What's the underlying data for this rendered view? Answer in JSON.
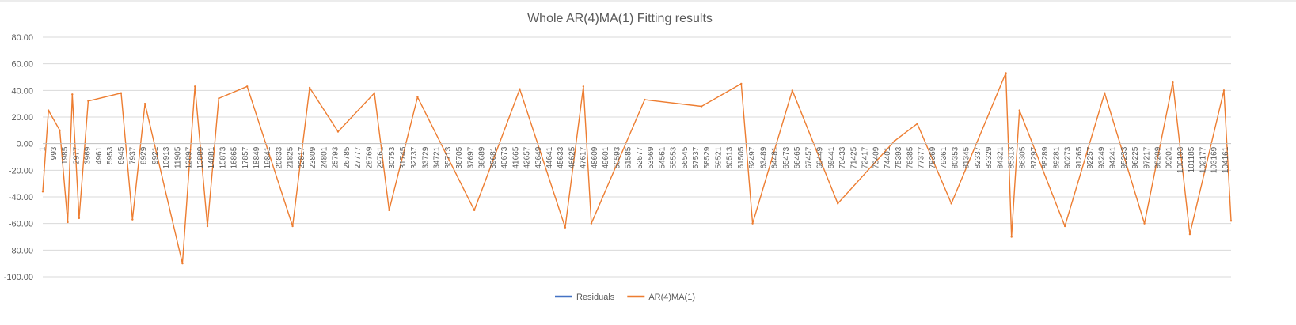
{
  "chart_data": {
    "type": "line",
    "title": "Whole AR(4)MA(1) Fitting results",
    "xlabel": "",
    "ylabel": "",
    "ylim": [
      -100,
      80
    ],
    "y_ticks": [
      80,
      60,
      40,
      20,
      0,
      -20,
      -40,
      -60,
      -80,
      -100
    ],
    "y_tick_labels": [
      "80.00",
      "60.00",
      "40.00",
      "20.00",
      "0.00",
      "-20.00",
      "-40.00",
      "-60.00",
      "-80.00",
      "-100.00"
    ],
    "x_range": [
      1,
      104629
    ],
    "x_tick_labels": [
      "1",
      "993",
      "1985",
      "2977",
      "3969",
      "4961",
      "5953",
      "6945",
      "7937",
      "8929",
      "9921",
      "10913",
      "11905",
      "12897",
      "13889",
      "14881",
      "15873",
      "16865",
      "17857",
      "18849",
      "19841",
      "20833",
      "21825",
      "22817",
      "23809",
      "24801",
      "25793",
      "26785",
      "27777",
      "28769",
      "29761",
      "30753",
      "31745",
      "32737",
      "33729",
      "34721",
      "35713",
      "36705",
      "37697",
      "38689",
      "39681",
      "40673",
      "41665",
      "42657",
      "43649",
      "44641",
      "45633",
      "46625",
      "47617",
      "48609",
      "49601",
      "50593",
      "51585",
      "52577",
      "53569",
      "54561",
      "55553",
      "56545",
      "57537",
      "58529",
      "59521",
      "60513",
      "61505",
      "62497",
      "63489",
      "64481",
      "65473",
      "66465",
      "67457",
      "68449",
      "69441",
      "70433",
      "71425",
      "72417",
      "73409",
      "74401",
      "75393",
      "76385",
      "77377",
      "78369",
      "79361",
      "80353",
      "81345",
      "82337",
      "83329",
      "84321",
      "85313",
      "86305",
      "87297",
      "88289",
      "89281",
      "90273",
      "91265",
      "92257",
      "93249",
      "94241",
      "95233",
      "96225",
      "97217",
      "98209",
      "99201",
      "100193",
      "101185",
      "102177",
      "103169",
      "104161"
    ],
    "grid": true,
    "legend_position": "bottom",
    "colors": {
      "residuals": "#4472C4",
      "model": "#ED7D31"
    },
    "series": [
      {
        "name": "Residuals",
        "color": "#4472C4",
        "x": [],
        "y": []
      },
      {
        "name": "AR(4)MA(1)",
        "color": "#ED7D31",
        "x": [
          1,
          500,
          1500,
          2200,
          2600,
          3200,
          4000,
          6900,
          7900,
          9000,
          12300,
          13400,
          14500,
          15500,
          18000,
          22000,
          23500,
          26000,
          29200,
          30500,
          33000,
          38000,
          42000,
          46000,
          47600,
          48300,
          53000,
          58000,
          61500,
          62500,
          66000,
          70000,
          75000,
          77000,
          80000,
          84800,
          85300,
          86000,
          90000,
          93500,
          97000,
          99500,
          101000,
          104000,
          104629
        ],
        "y": [
          -36,
          25,
          10,
          -59,
          37,
          -56,
          32,
          38,
          -57,
          30,
          -90,
          43,
          -62,
          34,
          43,
          -62,
          42,
          9,
          38,
          -50,
          35,
          -50,
          41,
          -63,
          43,
          -60,
          33,
          28,
          45,
          -60,
          40,
          -45,
          2,
          15,
          -45,
          53,
          -70,
          25,
          -62,
          38,
          -60,
          46,
          -68,
          40,
          -58
        ]
      }
    ],
    "annotations": []
  }
}
